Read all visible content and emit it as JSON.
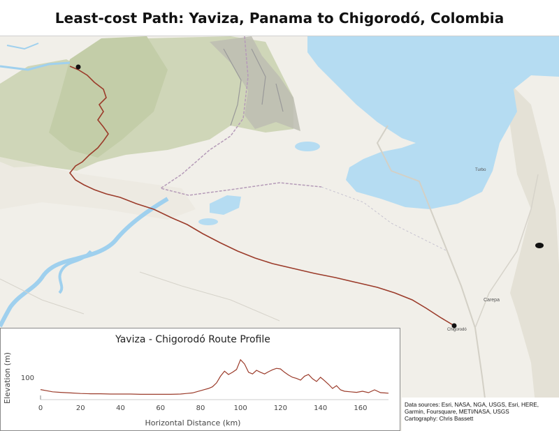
{
  "title": "Least-cost Path: Yaviza, Panama to Chigorodó, Colombia",
  "colors": {
    "route": "#9b3b2a",
    "water": "#b5dcf2",
    "land": "#f1efe9",
    "highland": "#c9d2b3"
  },
  "map": {
    "labels": {
      "end_town": "Chigorodó",
      "town_turbo": "Turbo",
      "town_carepa": "Carepa"
    }
  },
  "profile": {
    "chart_data": {
      "type": "line",
      "title": "Yaviza - Chigorodó Route Profile",
      "xlabel": "Horizontal Distance (km)",
      "ylabel": "Elevation (m)",
      "x_ticks": [
        "0",
        "20",
        "40",
        "60",
        "80",
        "100",
        "120",
        "140",
        "160"
      ],
      "y_ticks": [
        "100"
      ],
      "xlim": [
        0,
        174
      ],
      "ylim": [
        20,
        200
      ],
      "grid": false,
      "series": [
        {
          "x": [
            0,
            3,
            6,
            10,
            15,
            20,
            25,
            30,
            35,
            40,
            45,
            50,
            55,
            60,
            65,
            70,
            73,
            76,
            78,
            80,
            82,
            84,
            86,
            88,
            90,
            92,
            94,
            96,
            98,
            100,
            102,
            104,
            106,
            108,
            110,
            112,
            114,
            116,
            118,
            120,
            122,
            124,
            126,
            128,
            130,
            132,
            134,
            136,
            138,
            140,
            142,
            144,
            146,
            148,
            150,
            152,
            155,
            158,
            161,
            164,
            167,
            170,
            172,
            174
          ],
          "y": [
            56,
            52,
            48,
            46,
            44,
            42,
            41,
            41,
            40,
            40,
            40,
            39,
            39,
            39,
            39,
            40,
            42,
            44,
            48,
            52,
            56,
            60,
            66,
            80,
            104,
            122,
            110,
            118,
            128,
            163,
            148,
            118,
            112,
            125,
            118,
            112,
            120,
            127,
            132,
            130,
            118,
            108,
            100,
            96,
            90,
            104,
            110,
            95,
            85,
            100,
            88,
            75,
            60,
            70,
            55,
            50,
            48,
            46,
            50,
            45,
            55,
            45,
            44,
            43
          ]
        }
      ]
    }
  },
  "credits": {
    "sources": "Data sources: Esri, NASA, NGA, USGS, Esri, HERE, Garmin, Foursquare, METI/NASA, USGS",
    "cartography": "Cartography: Chris Bassett"
  }
}
